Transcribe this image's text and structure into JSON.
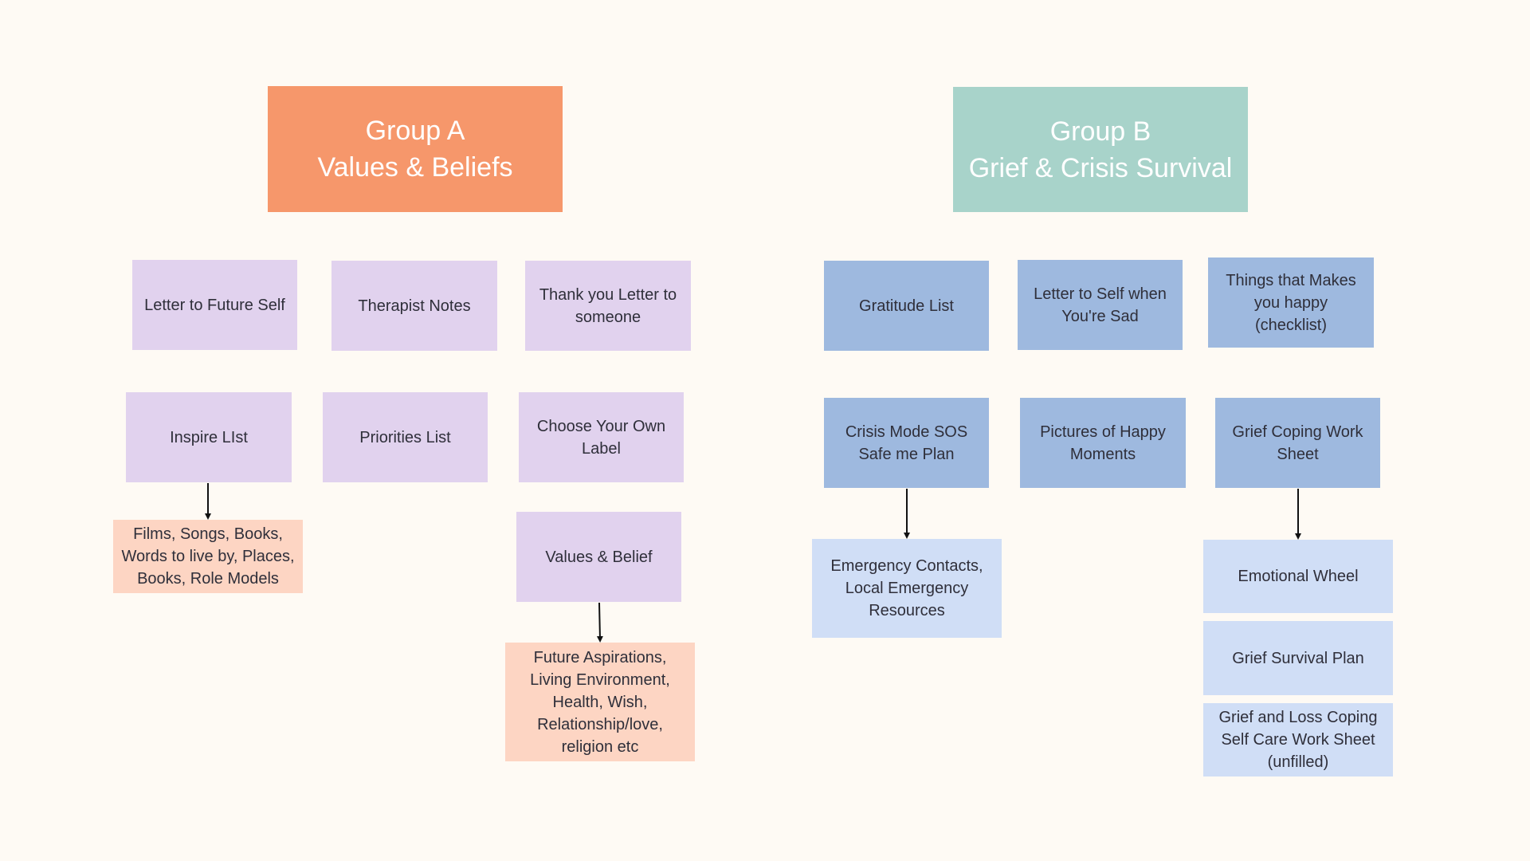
{
  "groups": [
    {
      "title_line1": "Group A",
      "title_line2": "Values & Beliefs",
      "color": "#f6976b"
    },
    {
      "title_line1": "Group B",
      "title_line2": "Grief & Crisis Survival",
      "color": "#a8d3ca"
    }
  ],
  "nodes": {
    "letter_future_self": [
      "Letter to Future Self"
    ],
    "therapist_notes": [
      "Therapist Notes"
    ],
    "thank_you_letter": [
      "Thank you Letter to",
      "someone"
    ],
    "inspire_list": [
      "Inspire LIst"
    ],
    "priorities_list": [
      "Priorities List"
    ],
    "choose_label": [
      "Choose Your Own",
      "Label"
    ],
    "inspire_details": [
      "Films, Songs, Books,",
      "Words to live by, Places,",
      "Books, Role Models"
    ],
    "values_belief": [
      "Values & Belief"
    ],
    "values_details": [
      "Future Aspirations,",
      "Living Environment,",
      "Health, Wish,",
      "Relationship/love,",
      "religion etc"
    ],
    "gratitude_list": [
      "Gratitude List"
    ],
    "letter_self_sad": [
      "Letter to Self when",
      "You're Sad"
    ],
    "things_happy": [
      "Things that Makes",
      "you happy",
      "(checklist)"
    ],
    "crisis_sos": [
      "Crisis Mode SOS",
      "Safe me Plan"
    ],
    "pictures_happy": [
      "Pictures of Happy",
      "Moments"
    ],
    "grief_coping_sheet": [
      "Grief Coping Work",
      "Sheet"
    ],
    "emergency_contacts": [
      "Emergency Contacts,",
      "Local Emergency",
      "Resources"
    ],
    "emotional_wheel": [
      "Emotional Wheel"
    ],
    "grief_survival_plan": [
      "Grief Survival Plan"
    ],
    "grief_loss_coping": [
      "Grief and Loss Coping",
      "Self Care Work Sheet",
      "(unfilled)"
    ]
  },
  "palette": {
    "background": "#fefaf4",
    "lavender": "#e1d2ee",
    "peach": "#fdd5c3",
    "blue": "#9eb9df",
    "light_blue": "#d0def6",
    "arrow": "#111111"
  }
}
